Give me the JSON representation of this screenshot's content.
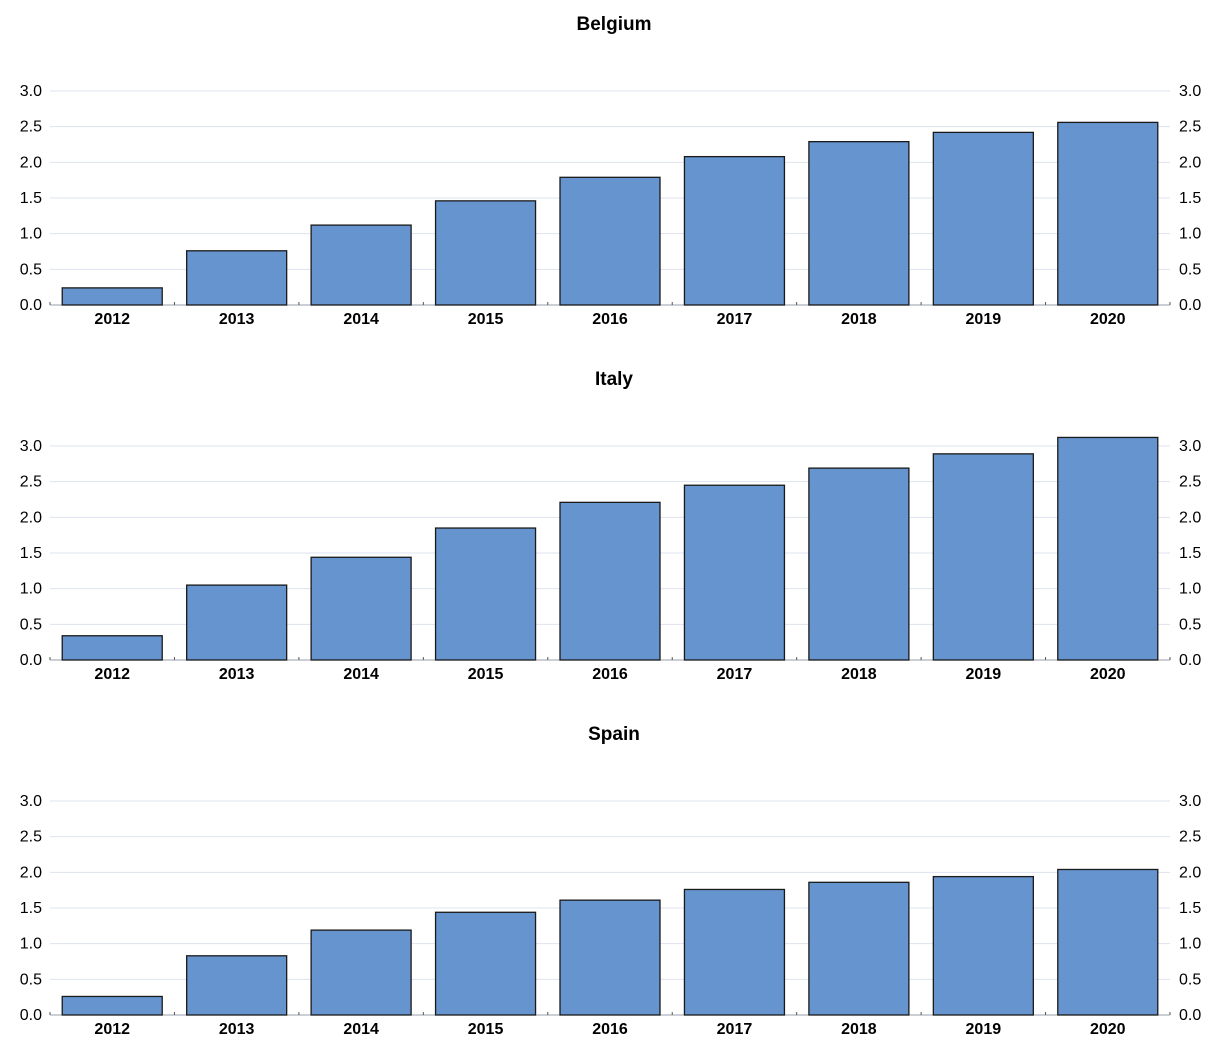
{
  "chart_data": [
    {
      "type": "bar",
      "title": "Belgium",
      "categories": [
        "2012",
        "2013",
        "2014",
        "2015",
        "2016",
        "2017",
        "2018",
        "2019",
        "2020"
      ],
      "values": [
        0.24,
        0.76,
        1.12,
        1.46,
        1.79,
        2.08,
        2.29,
        2.42,
        2.56
      ],
      "ylim": [
        0,
        3.0
      ],
      "yticks": [
        "0.0",
        "0.5",
        "1.0",
        "1.5",
        "2.0",
        "2.5",
        "3.0"
      ],
      "grid": true,
      "bar_color": "#6694CE"
    },
    {
      "type": "bar",
      "title": "Italy",
      "categories": [
        "2012",
        "2013",
        "2014",
        "2015",
        "2016",
        "2017",
        "2018",
        "2019",
        "2020"
      ],
      "values": [
        0.34,
        1.05,
        1.44,
        1.85,
        2.21,
        2.45,
        2.69,
        2.89,
        3.12
      ],
      "ylim": [
        0,
        3.0
      ],
      "yticks": [
        "0.0",
        "0.5",
        "1.0",
        "1.5",
        "2.0",
        "2.5",
        "3.0"
      ],
      "grid": true,
      "bar_color": "#6694CE"
    },
    {
      "type": "bar",
      "title": "Spain",
      "categories": [
        "2012",
        "2013",
        "2014",
        "2015",
        "2016",
        "2017",
        "2018",
        "2019",
        "2020"
      ],
      "values": [
        0.26,
        0.83,
        1.19,
        1.44,
        1.61,
        1.76,
        1.86,
        1.94,
        2.04
      ],
      "ylim": [
        0,
        3.0
      ],
      "yticks": [
        "0.0",
        "0.5",
        "1.0",
        "1.5",
        "2.0",
        "2.5",
        "3.0"
      ],
      "grid": true,
      "bar_color": "#6694CE"
    }
  ]
}
